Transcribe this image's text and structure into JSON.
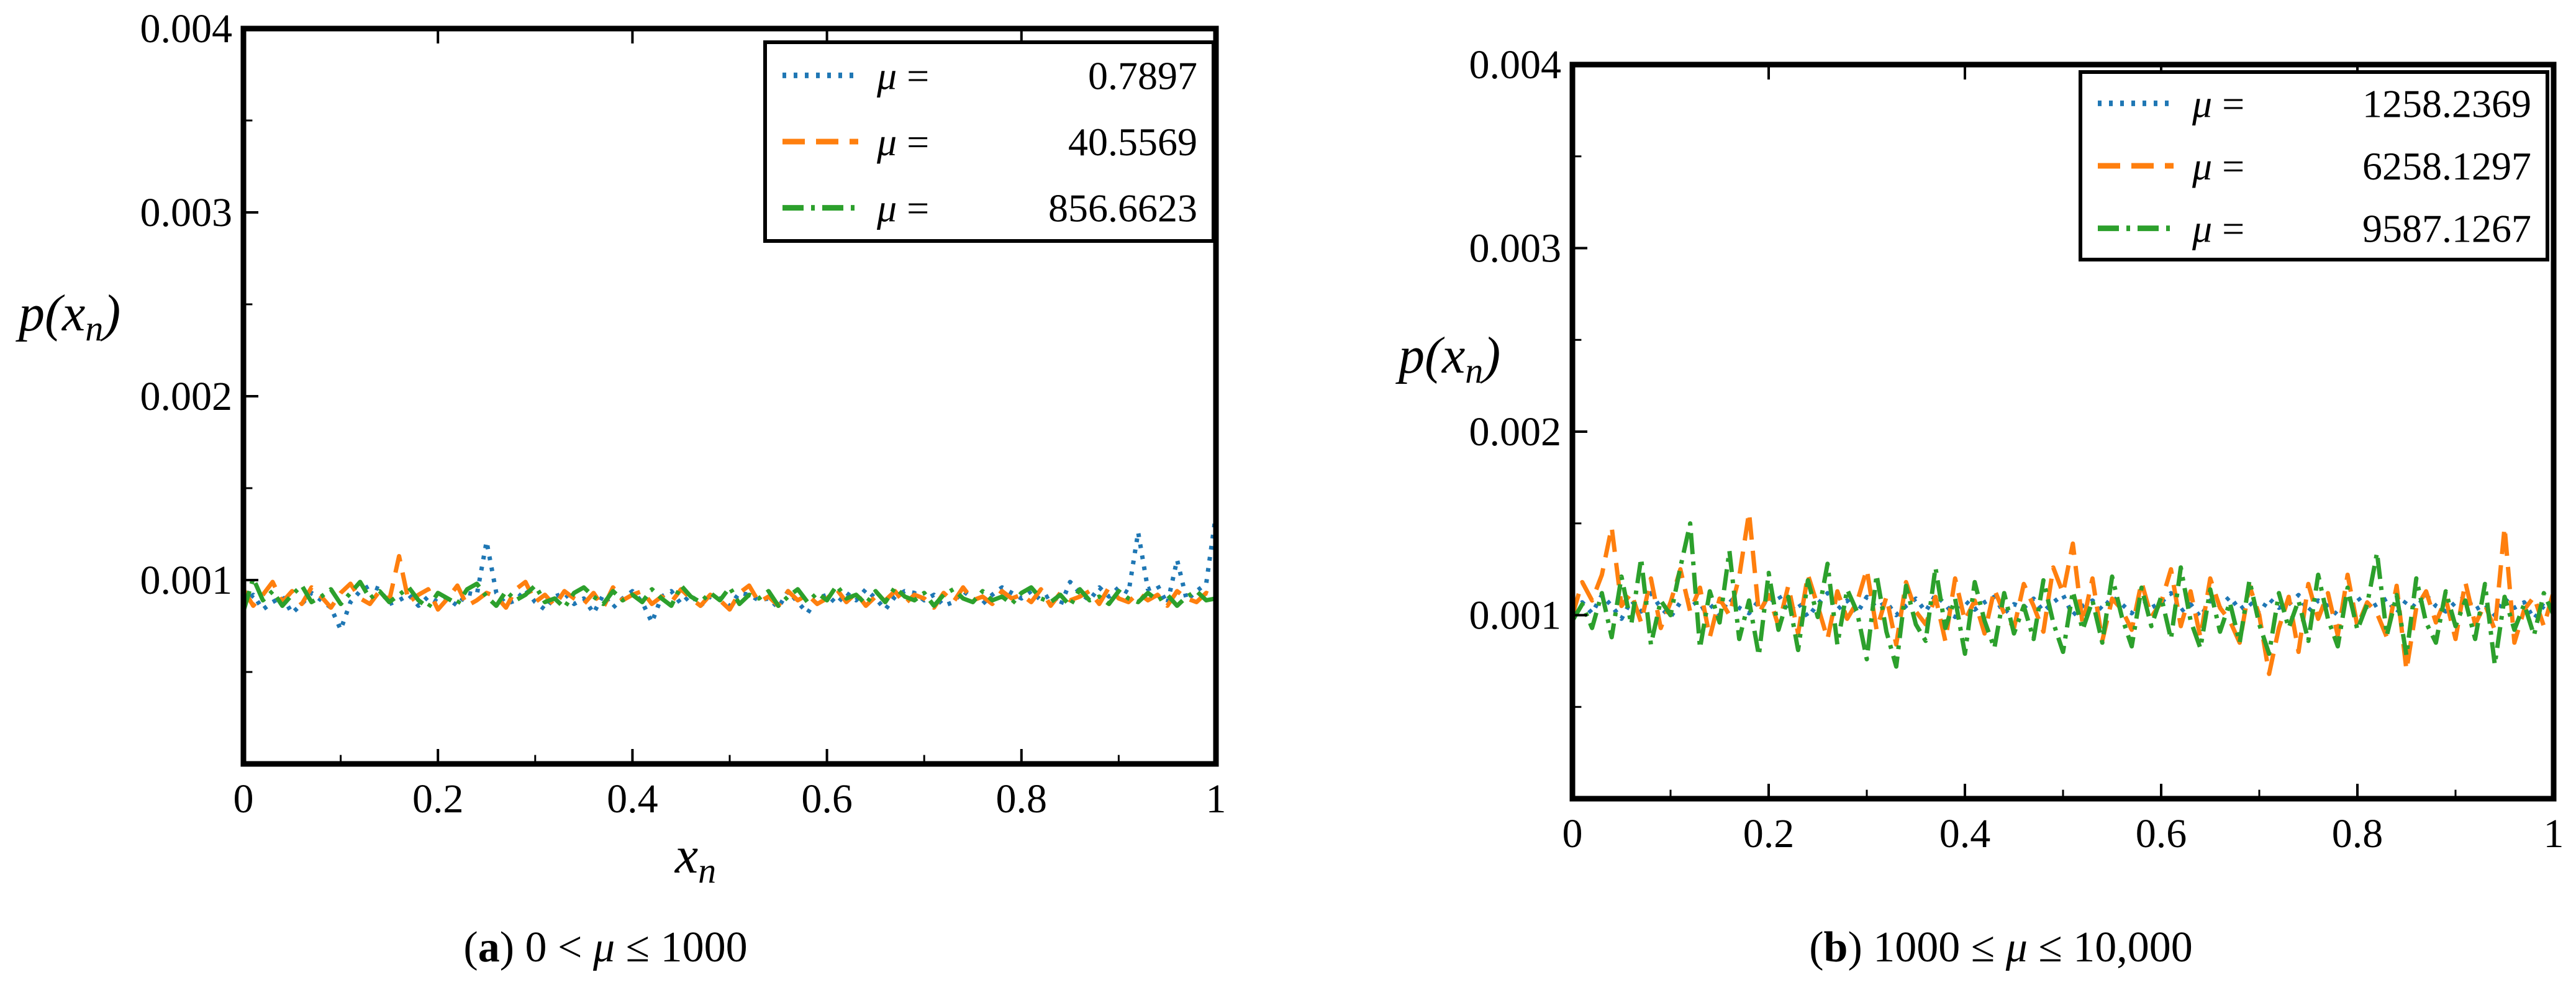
{
  "chart_data": [
    {
      "id": "a",
      "type": "line",
      "caption": {
        "letter": "a",
        "open": "(",
        "close": ")",
        "text": " 0 < μ ≤ 1000"
      },
      "xlabel": {
        "base": "x",
        "sub": "n"
      },
      "ylabel": {
        "base": "p(x",
        "sub": "n",
        "end": ")"
      },
      "xlim": [
        0,
        1
      ],
      "ylim": [
        0,
        0.004
      ],
      "xticks": [
        0,
        0.2,
        0.4,
        0.6,
        0.8,
        1
      ],
      "xtick_labels": [
        "0",
        "0.2",
        "0.4",
        "0.6",
        "0.8",
        "1"
      ],
      "yticks": [
        0.001,
        0.002,
        0.003,
        0.004
      ],
      "ytick_labels": [
        "0.001",
        "0.002",
        "0.003",
        "0.004"
      ],
      "legend_position": "top-right",
      "series": [
        {
          "name": "μ = 0.7897",
          "mu_value": "0.7897",
          "style": "dotted",
          "color": "#1f77b4",
          "values": [
            0.00086,
            0.00092,
            0.00084,
            0.00088,
            0.00091,
            0.00082,
            0.00087,
            0.00093,
            0.00089,
            0.00085,
            0.00073,
            0.00088,
            0.00094,
            0.00097,
            0.00095,
            0.00087,
            0.00089,
            0.00092,
            0.00086,
            0.00091,
            0.00088,
            0.0009,
            0.00086,
            0.00093,
            0.00092,
            0.00121,
            0.00093,
            0.00087,
            0.00089,
            0.00095,
            0.00088,
            0.00084,
            0.00091,
            0.00093,
            0.00087,
            0.0009,
            0.00082,
            0.00092,
            0.00085,
            0.0009,
            0.00094,
            0.00088,
            0.00077,
            0.00091,
            0.00094,
            0.00087,
            0.00092,
            0.00086,
            0.00091,
            0.0009,
            0.00086,
            0.00093,
            0.00092,
            0.00089,
            0.0009,
            0.00085,
            0.00094,
            0.00088,
            0.00082,
            0.0009,
            0.00092,
            0.00087,
            0.00093,
            0.00089,
            0.00095,
            0.0009,
            0.00084,
            0.00091,
            0.00094,
            0.00093,
            0.00089,
            0.00092,
            0.00086,
            0.00088,
            0.00094,
            0.0009,
            0.00087,
            0.00092,
            0.00096,
            0.00093,
            0.0009,
            0.00094,
            0.00089,
            0.00092,
            0.00086,
            0.00099,
            0.00093,
            0.00089,
            0.00096,
            0.00091,
            0.00096,
            0.00093,
            0.00126,
            0.00095,
            0.00097,
            0.00087,
            0.00111,
            0.00089,
            0.00094,
            0.00098,
            0.00136
          ]
        },
        {
          "name": "μ = 40.5569",
          "mu_value": "40.5569",
          "style": "dashed",
          "color": "#ff7f0e",
          "values": [
            0.00095,
            0.00086,
            0.00092,
            0.00099,
            0.00088,
            0.00094,
            0.00087,
            0.00096,
            0.00091,
            0.00085,
            0.00093,
            0.00098,
            0.0009,
            0.00087,
            0.00094,
            0.00089,
            0.00113,
            0.00088,
            0.00092,
            0.00095,
            0.00084,
            0.0009,
            0.00097,
            0.00086,
            0.00089,
            0.00093,
            0.00091,
            0.00085,
            0.00095,
            0.00099,
            0.00088,
            0.00092,
            0.00086,
            0.00094,
            0.0009,
            0.00087,
            0.00093,
            0.00085,
            0.00096,
            0.00089,
            0.00092,
            0.00094,
            0.00087,
            0.00091,
            0.00088,
            0.00095,
            0.0009,
            0.00086,
            0.00092,
            0.00089,
            0.00084,
            0.00093,
            0.00097,
            0.00088,
            0.00091,
            0.00086,
            0.00094,
            0.00089,
            0.00092,
            0.00087,
            0.0009,
            0.00095,
            0.00088,
            0.00093,
            0.00086,
            0.00091,
            0.00089,
            0.00094,
            0.00087,
            0.00092,
            0.0009,
            0.00085,
            0.00093,
            0.00088,
            0.00096,
            0.00089,
            0.00091,
            0.00087,
            0.00094,
            0.0009,
            0.00092,
            0.00088,
            0.00095,
            0.00086,
            0.00093,
            0.00089,
            0.00091,
            0.00094,
            0.00087,
            0.00096,
            0.0009,
            0.00088,
            0.00093,
            0.00089,
            0.00092,
            0.00086,
            0.00094,
            0.0009,
            0.00088,
            0.00093,
            0.00091
          ]
        },
        {
          "name": "μ = 856.6623",
          "mu_value": "856.6623",
          "style": "dashdot",
          "color": "#2ca02c",
          "values": [
            0.00083,
            0.00101,
            0.00089,
            0.00094,
            0.00086,
            0.00092,
            0.00097,
            0.00088,
            0.00091,
            0.00095,
            0.00087,
            0.00093,
            0.00099,
            0.0009,
            0.00094,
            0.00088,
            0.00092,
            0.00096,
            0.00089,
            0.00085,
            0.00093,
            0.0009,
            0.00087,
            0.00095,
            0.00098,
            0.00091,
            0.00086,
            0.00094,
            0.00089,
            0.00092,
            0.00097,
            0.00088,
            0.0009,
            0.00085,
            0.00093,
            0.00096,
            0.00091,
            0.00087,
            0.00094,
            0.00089,
            0.00092,
            0.00088,
            0.00095,
            0.0009,
            0.00086,
            0.00097,
            0.00091,
            0.00088,
            0.00093,
            0.00089,
            0.00096,
            0.00087,
            0.00092,
            0.0009,
            0.00094,
            0.00086,
            0.00091,
            0.00095,
            0.00088,
            0.00093,
            0.00089,
            0.00097,
            0.0009,
            0.00092,
            0.00087,
            0.00094,
            0.00088,
            0.00096,
            0.00091,
            0.00089,
            0.00093,
            0.00086,
            0.00092,
            0.00095,
            0.0009,
            0.00088,
            0.00094,
            0.00089,
            0.00091,
            0.00087,
            0.00093,
            0.00096,
            0.0009,
            0.00088,
            0.00092,
            0.00086,
            0.00095,
            0.00089,
            0.00091,
            0.00087,
            0.00094,
            0.0009,
            0.00088,
            0.00093,
            0.00089,
            0.00092,
            0.00086,
            0.00091,
            0.00094,
            0.00089,
            0.0009
          ]
        }
      ]
    },
    {
      "id": "b",
      "type": "line",
      "caption": {
        "letter": "b",
        "open": "(",
        "close": ")",
        "text": " 1000 ≤ μ ≤ 10,000"
      },
      "xlabel": {
        "base": "",
        "sub": ""
      },
      "ylabel": {
        "base": "p(x",
        "sub": "n",
        "end": ")"
      },
      "xlim": [
        0,
        1
      ],
      "ylim": [
        0,
        0.004
      ],
      "xticks": [
        0,
        0.2,
        0.4,
        0.6,
        0.8,
        1
      ],
      "xtick_labels": [
        "0",
        "0.2",
        "0.4",
        "0.6",
        "0.8",
        "1"
      ],
      "yticks": [
        0.001,
        0.002,
        0.003,
        0.004
      ],
      "ytick_labels": [
        "0.001",
        "0.002",
        "0.003",
        "0.004"
      ],
      "legend_position": "top-right",
      "series": [
        {
          "name": "μ = 1258.2369",
          "mu_value": "1258.2369",
          "style": "dotted",
          "color": "#1f77b4",
          "values": [
            0.00103,
            0.00107,
            0.00101,
            0.00111,
            0.00105,
            0.00098,
            0.00108,
            0.00102,
            0.00112,
            0.00104,
            0.00099,
            0.00107,
            0.0011,
            0.00103,
            0.00106,
            0.001,
            0.00109,
            0.00104,
            0.00101,
            0.00108,
            0.00105,
            0.00111,
            0.00102,
            0.00107,
            0.00099,
            0.00106,
            0.00112,
            0.00103,
            0.00108,
            0.00101,
            0.0011,
            0.00104,
            0.00107,
            0.001,
            0.00105,
            0.00109,
            0.00102,
            0.00111,
            0.00106,
            0.00099,
            0.00108,
            0.00103,
            0.00107,
            0.0011,
            0.00101,
            0.00106,
            0.00104,
            0.00109,
            0.00102,
            0.00107,
            0.00111,
            0.001,
            0.00105,
            0.00108,
            0.00103,
            0.0011,
            0.00106,
            0.00101,
            0.00109,
            0.00104,
            0.00107,
            0.00112,
            0.00102,
            0.00106,
            0.00099,
            0.00108,
            0.00105,
            0.0011,
            0.00103,
            0.00107,
            0.00101,
            0.00109,
            0.00104,
            0.00106,
            0.00111,
            0.00102,
            0.00108,
            0.00105,
            0.001,
            0.00107,
            0.0011,
            0.00103,
            0.00106,
            0.00109,
            0.00101,
            0.00108,
            0.00104,
            0.00111,
            0.00105,
            0.00102,
            0.00107,
            0.0011,
            0.00103,
            0.00106,
            0.001,
            0.00109,
            0.00104,
            0.00107,
            0.00098,
            0.00105,
            0.00102
          ]
        },
        {
          "name": "μ = 6258.1297",
          "mu_value": "6258.1297",
          "style": "dashed",
          "color": "#ff7f0e",
          "values": [
            0.001,
            0.00118,
            0.00108,
            0.00122,
            0.00148,
            0.00105,
            0.00112,
            0.00096,
            0.0012,
            0.00093,
            0.00107,
            0.00125,
            0.00102,
            0.00115,
            0.00088,
            0.00109,
            0.001,
            0.00121,
            0.00156,
            0.00101,
            0.00111,
            0.00094,
            0.00116,
            0.0009,
            0.00122,
            0.00105,
            0.00087,
            0.00113,
            0.00098,
            0.00107,
            0.00125,
            0.00092,
            0.0011,
            0.00084,
            0.00118,
            0.00102,
            0.00095,
            0.0011,
            0.00086,
            0.0012,
            0.00097,
            0.00108,
            0.0009,
            0.00114,
            0.00101,
            0.00093,
            0.00117,
            0.00105,
            0.00091,
            0.00126,
            0.00112,
            0.00139,
            0.00095,
            0.0012,
            0.00086,
            0.00109,
            0.00103,
            0.00092,
            0.00118,
            0.00099,
            0.00107,
            0.00125,
            0.00094,
            0.00113,
            0.00088,
            0.0012,
            0.00104,
            0.00097,
            0.00085,
            0.00116,
            0.001,
            0.00068,
            0.00093,
            0.0011,
            0.0008,
            0.00117,
            0.00098,
            0.00112,
            0.00089,
            0.00122,
            0.00094,
            0.00107,
            0.00101,
            0.00088,
            0.00116,
            0.0007,
            0.00104,
            0.00113,
            0.00096,
            0.00109,
            0.00087,
            0.00118,
            0.00095,
            0.00106,
            0.00092,
            0.00148,
            0.00085,
            0.00103,
            0.0011,
            0.00094,
            0.00113
          ]
        },
        {
          "name": "μ = 9587.1267",
          "mu_value": "9587.1267",
          "style": "dashdot",
          "color": "#2ca02c",
          "values": [
            0.00097,
            0.00106,
            0.00093,
            0.00112,
            0.00088,
            0.00121,
            0.00095,
            0.00131,
            0.00084,
            0.00108,
            0.001,
            0.00126,
            0.0015,
            0.00082,
            0.00113,
            0.00096,
            0.00135,
            0.00087,
            0.00108,
            0.00078,
            0.00123,
            0.00092,
            0.0011,
            0.00081,
            0.00119,
            0.00099,
            0.00128,
            0.00084,
            0.00114,
            0.00102,
            0.00076,
            0.00122,
            0.00091,
            0.00072,
            0.00116,
            0.00095,
            0.00086,
            0.00126,
            0.00093,
            0.00109,
            0.00079,
            0.00118,
            0.00097,
            0.00082,
            0.00112,
            0.0009,
            0.00105,
            0.00087,
            0.00119,
            0.00096,
            0.0008,
            0.00113,
            0.00092,
            0.00108,
            0.00085,
            0.00121,
            0.00099,
            0.00083,
            0.00115,
            0.00094,
            0.0011,
            0.00087,
            0.00126,
            0.00097,
            0.00082,
            0.00114,
            0.00091,
            0.00107,
            0.00085,
            0.00119,
            0.00095,
            0.00079,
            0.00112,
            0.00093,
            0.00108,
            0.00086,
            0.00122,
            0.00098,
            0.00083,
            0.00115,
            0.00092,
            0.00106,
            0.00134,
            0.00089,
            0.00111,
            0.00078,
            0.0012,
            0.00096,
            0.00085,
            0.00113,
            0.00094,
            0.00108,
            0.00087,
            0.00117,
            0.00073,
            0.0011,
            0.00092,
            0.00106,
            0.00089,
            0.00112,
            0.001
          ]
        }
      ]
    }
  ]
}
